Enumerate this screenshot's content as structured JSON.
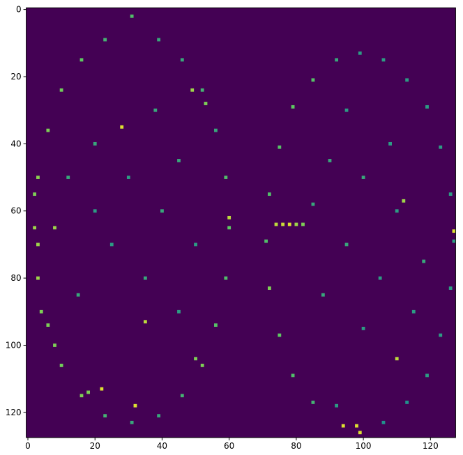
{
  "chart_data": {
    "type": "heatmap",
    "xlim": [
      -0.5,
      127.5
    ],
    "ylim": [
      127.5,
      -0.5
    ],
    "xticks": [
      0,
      20,
      40,
      60,
      80,
      100,
      120
    ],
    "yticks": [
      0,
      20,
      40,
      60,
      80,
      100,
      120
    ],
    "clim": [
      0,
      1
    ],
    "colormap": [
      "#440154",
      "#3b528b",
      "#21918c",
      "#5ec962",
      "#fde725"
    ],
    "cells": [
      [
        60,
        65,
        0.75
      ],
      [
        59,
        80,
        0.7
      ],
      [
        56,
        94,
        0.72
      ],
      [
        52,
        106,
        0.8
      ],
      [
        46,
        115,
        0.65
      ],
      [
        39,
        121,
        0.6
      ],
      [
        31,
        123,
        0.6
      ],
      [
        23,
        121,
        0.65
      ],
      [
        16,
        115,
        0.8
      ],
      [
        10,
        106,
        0.78
      ],
      [
        6,
        94,
        0.8
      ],
      [
        3,
        80,
        0.85
      ],
      [
        2,
        65,
        0.85
      ],
      [
        3,
        50,
        0.82
      ],
      [
        6,
        36,
        0.8
      ],
      [
        10,
        24,
        0.78
      ],
      [
        16,
        15,
        0.75
      ],
      [
        23,
        9,
        0.65
      ],
      [
        31,
        2,
        0.7
      ],
      [
        39,
        9,
        0.6
      ],
      [
        46,
        15,
        0.6
      ],
      [
        52,
        24,
        0.65
      ],
      [
        56,
        36,
        0.6
      ],
      [
        59,
        50,
        0.7
      ],
      [
        60,
        62,
        0.9
      ],
      [
        3,
        70,
        0.85
      ],
      [
        2,
        55,
        0.8
      ],
      [
        4,
        90,
        0.8
      ],
      [
        8,
        100,
        0.8
      ],
      [
        18,
        114,
        0.8
      ],
      [
        28,
        35,
        0.95
      ],
      [
        22,
        113,
        0.95
      ],
      [
        32,
        118,
        0.95
      ],
      [
        8,
        65,
        0.85
      ],
      [
        35,
        93,
        0.9
      ],
      [
        49,
        24,
        0.85
      ],
      [
        53,
        28,
        0.8
      ],
      [
        50,
        104,
        0.8
      ],
      [
        20,
        40,
        0.6
      ],
      [
        30,
        50,
        0.55
      ],
      [
        40,
        60,
        0.6
      ],
      [
        25,
        70,
        0.55
      ],
      [
        35,
        80,
        0.6
      ],
      [
        45,
        90,
        0.55
      ],
      [
        15,
        85,
        0.6
      ],
      [
        20,
        60,
        0.55
      ],
      [
        45,
        45,
        0.6
      ],
      [
        38,
        30,
        0.6
      ],
      [
        12,
        50,
        0.6
      ],
      [
        50,
        70,
        0.55
      ],
      [
        127,
        69,
        0.55
      ],
      [
        126,
        83,
        0.55
      ],
      [
        123,
        97,
        0.55
      ],
      [
        119,
        109,
        0.55
      ],
      [
        113,
        117,
        0.5
      ],
      [
        106,
        123,
        0.5
      ],
      [
        92,
        118,
        0.55
      ],
      [
        85,
        117,
        0.65
      ],
      [
        79,
        109,
        0.7
      ],
      [
        75,
        97,
        0.75
      ],
      [
        72,
        83,
        0.8
      ],
      [
        71,
        69,
        0.7
      ],
      [
        72,
        55,
        0.7
      ],
      [
        75,
        41,
        0.72
      ],
      [
        79,
        29,
        0.75
      ],
      [
        85,
        21,
        0.72
      ],
      [
        92,
        15,
        0.6
      ],
      [
        99,
        13,
        0.55
      ],
      [
        106,
        15,
        0.55
      ],
      [
        113,
        21,
        0.55
      ],
      [
        119,
        29,
        0.55
      ],
      [
        123,
        41,
        0.55
      ],
      [
        126,
        55,
        0.55
      ],
      [
        74,
        64,
        0.9
      ],
      [
        76,
        64,
        0.92
      ],
      [
        78,
        64,
        0.95
      ],
      [
        80,
        64,
        0.85
      ],
      [
        82,
        64,
        0.8
      ],
      [
        127,
        66,
        0.95
      ],
      [
        110,
        104,
        0.9
      ],
      [
        94,
        124,
        0.95
      ],
      [
        98,
        124,
        0.95
      ],
      [
        99,
        126,
        0.95
      ],
      [
        112,
        57,
        0.85
      ],
      [
        90,
        45,
        0.6
      ],
      [
        100,
        50,
        0.6
      ],
      [
        110,
        60,
        0.55
      ],
      [
        95,
        70,
        0.6
      ],
      [
        105,
        80,
        0.55
      ],
      [
        115,
        90,
        0.55
      ],
      [
        88,
        85,
        0.6
      ],
      [
        100,
        95,
        0.55
      ],
      [
        108,
        40,
        0.55
      ],
      [
        95,
        30,
        0.55
      ],
      [
        118,
        75,
        0.6
      ],
      [
        85,
        58,
        0.6
      ]
    ]
  }
}
